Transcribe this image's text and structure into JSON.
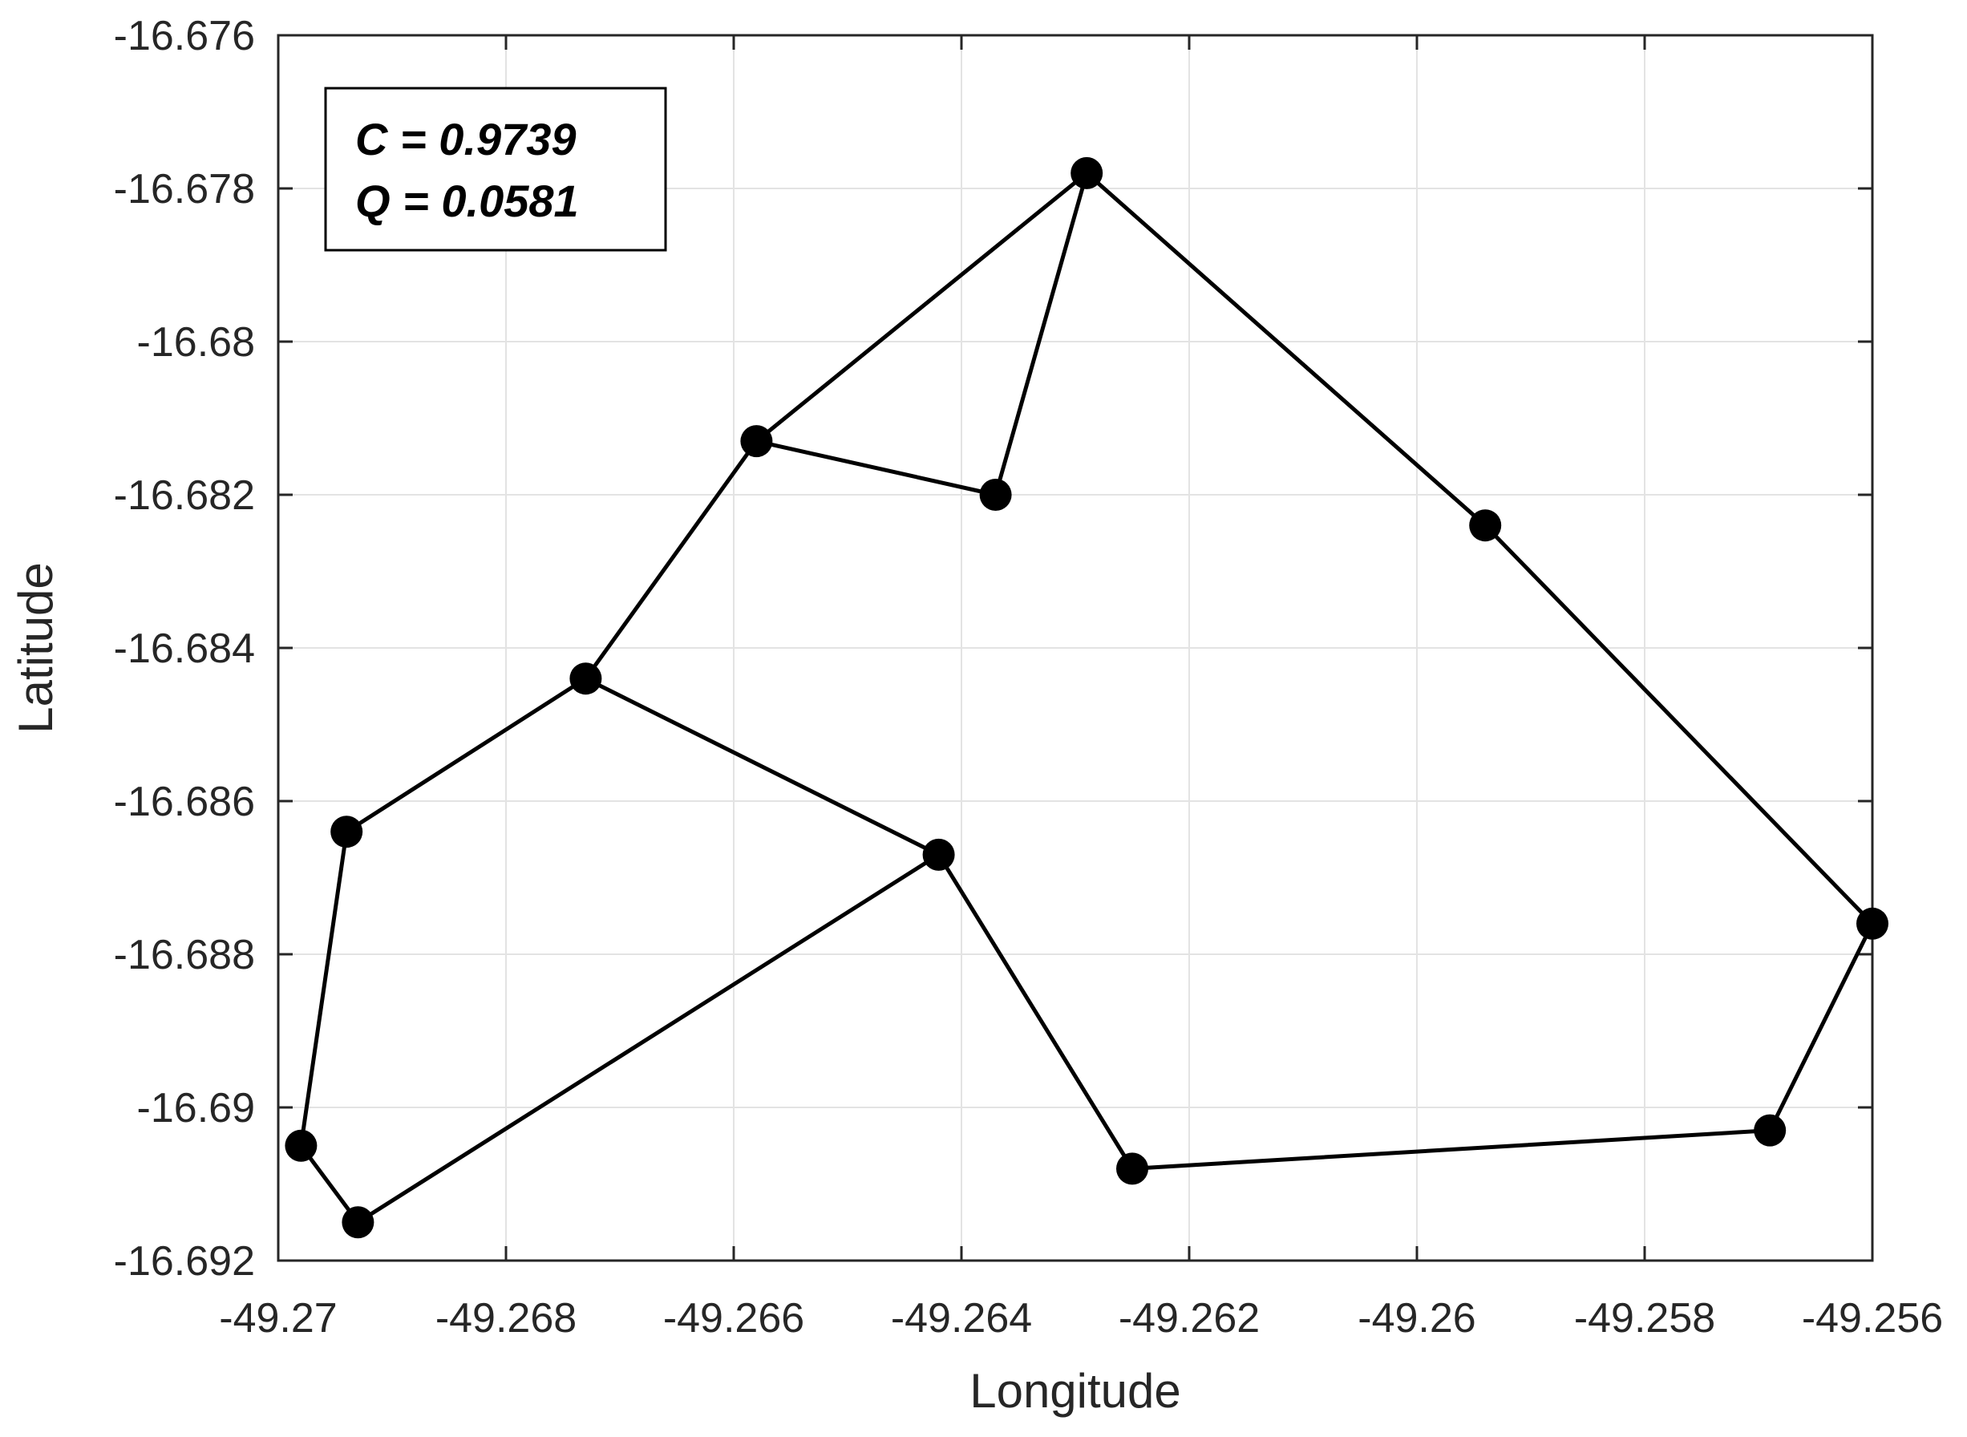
{
  "chart_data": {
    "type": "line",
    "xlabel": "Longitude",
    "ylabel": "Latitude",
    "xlim": [
      -49.27,
      -49.256
    ],
    "ylim": [
      -16.692,
      -16.676
    ],
    "x_ticks": [
      -49.27,
      -49.268,
      -49.266,
      -49.264,
      -49.262,
      -49.26,
      -49.258,
      -49.256
    ],
    "x_tick_labels": [
      "-49.27",
      "-49.268",
      "-49.266",
      "-49.264",
      "-49.262",
      "-49.26",
      "-49.258",
      "-49.256"
    ],
    "y_ticks": [
      -16.676,
      -16.678,
      -16.68,
      -16.682,
      -16.684,
      -16.686,
      -16.688,
      -16.69,
      -16.692
    ],
    "y_tick_labels": [
      "-16.676",
      "-16.678",
      "-16.68",
      "-16.682",
      "-16.684",
      "-16.686",
      "-16.688",
      "-16.69",
      "-16.692"
    ],
    "grid": true,
    "marker_color": "#000000",
    "line_color": "#000000",
    "nodes": [
      {
        "x": -49.2629,
        "y": -16.6778
      },
      {
        "x": -49.2637,
        "y": -16.682
      },
      {
        "x": -49.2658,
        "y": -16.6813
      },
      {
        "x": -49.2673,
        "y": -16.6844
      },
      {
        "x": -49.2694,
        "y": -16.6864
      },
      {
        "x": -49.2698,
        "y": -16.6905
      },
      {
        "x": -49.2693,
        "y": -16.6915
      },
      {
        "x": -49.2642,
        "y": -16.6867
      },
      {
        "x": -49.2625,
        "y": -16.6908
      },
      {
        "x": -49.2569,
        "y": -16.6903
      },
      {
        "x": -49.256,
        "y": -16.6876
      },
      {
        "x": -49.2594,
        "y": -16.6824
      }
    ],
    "route": [
      0,
      1,
      2,
      3,
      4,
      5,
      6,
      7,
      8,
      9,
      10,
      11,
      0
    ],
    "extra_edges": [
      [
        0,
        2
      ],
      [
        3,
        7
      ]
    ],
    "annotation": [
      "C = 0.9739",
      "Q = 0.0581"
    ]
  }
}
